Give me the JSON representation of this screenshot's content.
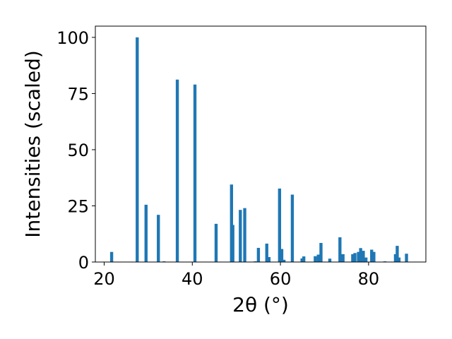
{
  "chart_data": {
    "type": "bar",
    "xlabel": "2θ (°)",
    "ylabel": "Intensities (scaled)",
    "xlim": [
      18,
      93
    ],
    "ylim": [
      0,
      105
    ],
    "xticks": [
      20,
      40,
      60,
      80
    ],
    "yticks": [
      0,
      25,
      50,
      75,
      100
    ],
    "bar_width": 0.7,
    "grid": false,
    "color": "#1f77b4",
    "x": [
      21.7,
      27.5,
      29.5,
      32.3,
      33.6,
      36.6,
      40.6,
      45.4,
      48.9,
      49.2,
      50.9,
      51.9,
      54.3,
      55.0,
      56.9,
      57.4,
      59.8,
      60.3,
      60.8,
      62.7,
      64.9,
      65.3,
      67.9,
      68.6,
      69.2,
      71.2,
      73.5,
      74.2,
      76.4,
      76.9,
      77.7,
      78.2,
      78.8,
      79.4,
      80.7,
      81.2,
      83.7,
      86.1,
      86.5,
      86.9,
      88.6
    ],
    "values": [
      4.5,
      100,
      25.5,
      21,
      0.3,
      81.2,
      79,
      17,
      34.5,
      16.5,
      23.2,
      24,
      0.3,
      6.3,
      8.2,
      2.2,
      32.7,
      5.8,
      1,
      30,
      1.6,
      2.5,
      2.6,
      3.3,
      8.5,
      1.5,
      11,
      3.5,
      3.5,
      4,
      4.5,
      6.2,
      5,
      2,
      5.5,
      4.5,
      0.3,
      3.5,
      7.2,
      2,
      3.7
    ]
  }
}
